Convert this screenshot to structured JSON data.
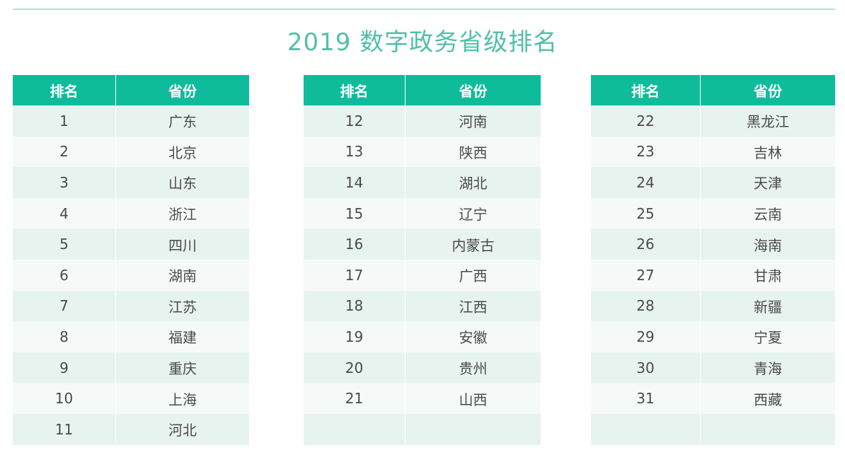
{
  "title": "2019 数字政务省级排名",
  "headers": {
    "rank": "排名",
    "province": "省份"
  },
  "colors": {
    "accent": "#0ebc9c",
    "title": "#52bfa8",
    "row_odd": "#e7f3ef",
    "row_even": "#f5faf8"
  },
  "tables": [
    {
      "rows": [
        {
          "rank": "1",
          "province": "广东"
        },
        {
          "rank": "2",
          "province": "北京"
        },
        {
          "rank": "3",
          "province": "山东"
        },
        {
          "rank": "4",
          "province": "浙江"
        },
        {
          "rank": "5",
          "province": "四川"
        },
        {
          "rank": "6",
          "province": "湖南"
        },
        {
          "rank": "7",
          "province": "江苏"
        },
        {
          "rank": "8",
          "province": "福建"
        },
        {
          "rank": "9",
          "province": "重庆"
        },
        {
          "rank": "10",
          "province": "上海"
        },
        {
          "rank": "11",
          "province": "河北"
        }
      ]
    },
    {
      "rows": [
        {
          "rank": "12",
          "province": "河南"
        },
        {
          "rank": "13",
          "province": "陕西"
        },
        {
          "rank": "14",
          "province": "湖北"
        },
        {
          "rank": "15",
          "province": "辽宁"
        },
        {
          "rank": "16",
          "province": "内蒙古"
        },
        {
          "rank": "17",
          "province": "广西"
        },
        {
          "rank": "18",
          "province": "江西"
        },
        {
          "rank": "19",
          "province": "安徽"
        },
        {
          "rank": "20",
          "province": "贵州"
        },
        {
          "rank": "21",
          "province": "山西"
        },
        {
          "rank": "",
          "province": ""
        }
      ]
    },
    {
      "rows": [
        {
          "rank": "22",
          "province": "黑龙江"
        },
        {
          "rank": "23",
          "province": "吉林"
        },
        {
          "rank": "24",
          "province": "天津"
        },
        {
          "rank": "25",
          "province": "云南"
        },
        {
          "rank": "26",
          "province": "海南"
        },
        {
          "rank": "27",
          "province": "甘肃"
        },
        {
          "rank": "28",
          "province": "新疆"
        },
        {
          "rank": "29",
          "province": "宁夏"
        },
        {
          "rank": "30",
          "province": "青海"
        },
        {
          "rank": "31",
          "province": "西藏"
        },
        {
          "rank": "",
          "province": ""
        }
      ]
    }
  ]
}
